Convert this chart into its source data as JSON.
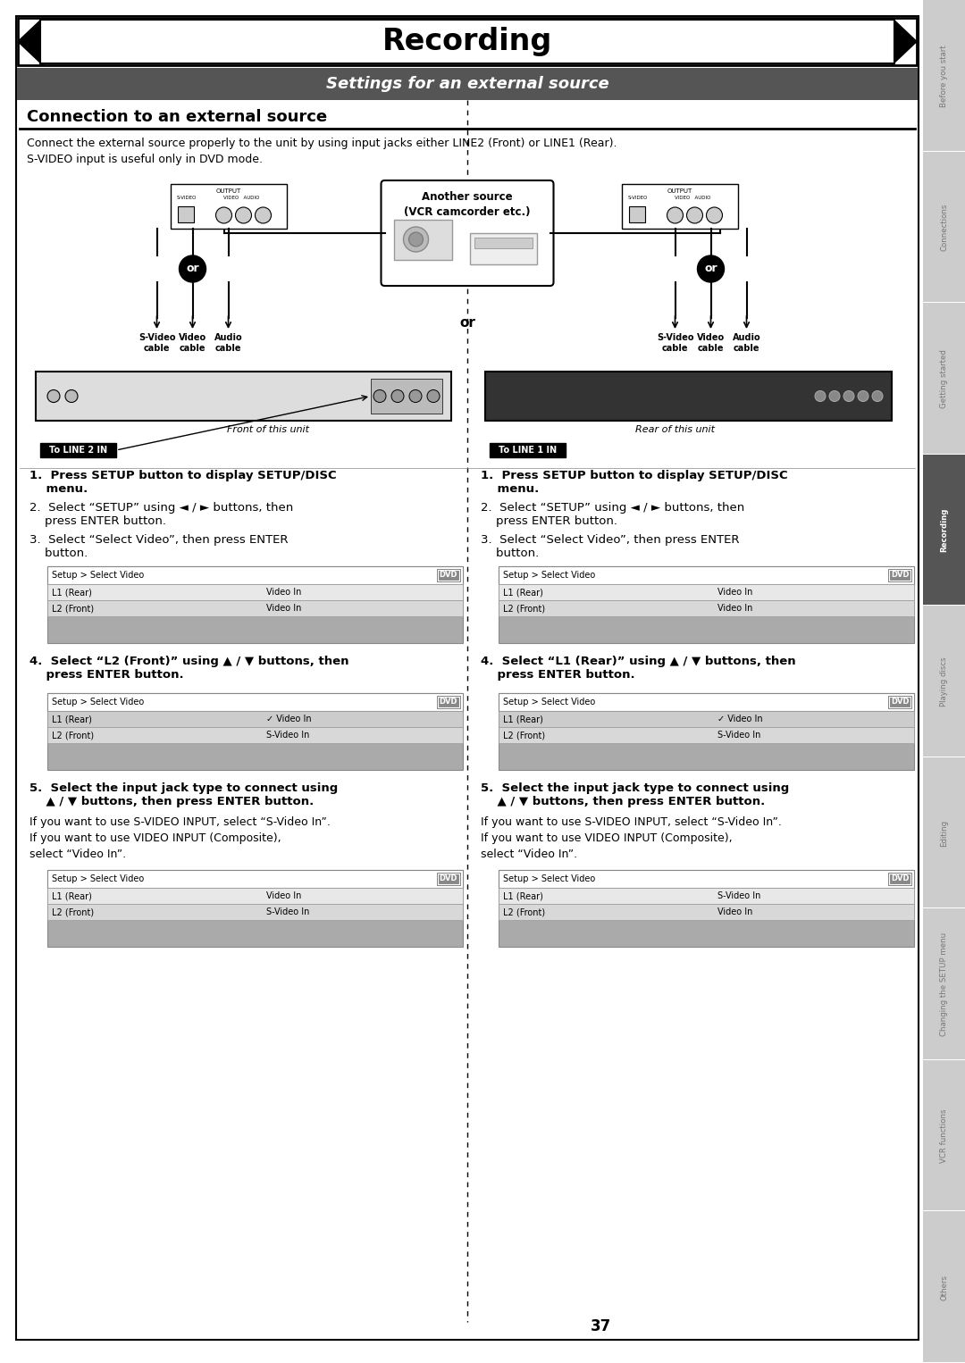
{
  "title": "Recording",
  "subtitle": "Settings for an external source",
  "section_title": "Connection to an external source",
  "body_text1": "Connect the external source properly to the unit by using input jacks either LINE2 (Front) or LINE1 (Rear).",
  "body_text2": "S-VIDEO input is useful only in DVD mode.",
  "left_step1": "1.  Press SETUP button to display SETUP/DISC\n    menu.",
  "left_step2": "2.  Select “SETUP” using ◄ / ► buttons, then\n    press ENTER button.",
  "left_step3": "3.  Select “Select Video”, then press ENTER\n    button.",
  "right_step1": "1.  Press SETUP button to display SETUP/DISC\n    menu.",
  "right_step2": "2.  Select “SETUP” using ◄ / ► buttons, then\n    press ENTER button.",
  "right_step3": "3.  Select “Select Video”, then press ENTER\n    button.",
  "left_step4": "4.  Select “L2 (Front)” using ▲ / ▼ buttons, then\n    press ENTER button.",
  "right_step4": "4.  Select “L1 (Rear)” using ▲ / ▼ buttons, then\n    press ENTER button.",
  "left_step5_bold": "5.  Select the input jack type to connect using\n    ▲ / ▼ buttons, then press ENTER button.",
  "left_step5_normal1": "If you want to use S-VIDEO INPUT, select “S-Video In”.",
  "left_step5_normal2": "If you want to use VIDEO INPUT (Composite),",
  "left_step5_normal3": "select “Video In”.",
  "right_step5_bold": "5.  Select the input jack type to connect using\n    ▲ / ▼ buttons, then press ENTER button.",
  "right_step5_normal1": "If you want to use S-VIDEO INPUT, select “S-Video In”.",
  "right_step5_normal2": "If you want to use VIDEO INPUT (Composite),",
  "right_step5_normal3": "select “Video In”.",
  "left_table3_rows": [
    [
      "L1 (Rear)",
      "Video In"
    ],
    [
      "L2 (Front)",
      "Video In"
    ]
  ],
  "right_table3_rows": [
    [
      "L1 (Rear)",
      "Video In"
    ],
    [
      "L2 (Front)",
      "Video In"
    ]
  ],
  "left_table4_rows": [
    [
      "L1 (Rear)",
      "✓ Video In"
    ],
    [
      "L2 (Front)",
      "S-Video In"
    ]
  ],
  "right_table4_rows": [
    [
      "L1 (Rear)",
      "✓ Video In"
    ],
    [
      "L2 (Front)",
      "S-Video In"
    ]
  ],
  "left_table5_rows": [
    [
      "L1 (Rear)",
      "Video In"
    ],
    [
      "L2 (Front)",
      "S-Video In"
    ]
  ],
  "right_table5_rows": [
    [
      "L1 (Rear)",
      "S-Video In"
    ],
    [
      "L2 (Front)",
      "Video In"
    ]
  ],
  "table_header": "Setup > Select Video",
  "table_dvd_label": "DVD",
  "tab_labels": [
    "Before you start",
    "Connections",
    "Getting started",
    "Recording",
    "Playing discs",
    "Editing",
    "Changing the SETUP menu",
    "VCR functions",
    "Others"
  ],
  "active_tab": "Recording",
  "page_number": "37",
  "left_diagram_label": "Front of this unit",
  "right_diagram_label": "Rear of this unit",
  "to_line2_label": "To LINE 2 IN",
  "to_line1_label": "To LINE 1 IN",
  "another_source_label": "Another source\n(VCR camcorder etc.)",
  "left_cable_labels": [
    "S-Video\ncable",
    "Video\ncable",
    "Audio\ncable"
  ],
  "right_cable_labels": [
    "S-Video\ncable",
    "Video\ncable",
    "Audio\ncable"
  ],
  "bg_color": "#ffffff",
  "tab_bg": "#cccccc",
  "active_tab_bg": "#555555",
  "header_bg": "#555555",
  "header_text_color": "#ffffff",
  "divider_color": "#000000",
  "tab_text_color": "#777777",
  "active_tab_text": "#ffffff",
  "table_gray_bg": "#888888",
  "table_white_bg": "#ffffff",
  "table_row_highlight": "#dddddd",
  "dvd_badge_bg": "#777777"
}
